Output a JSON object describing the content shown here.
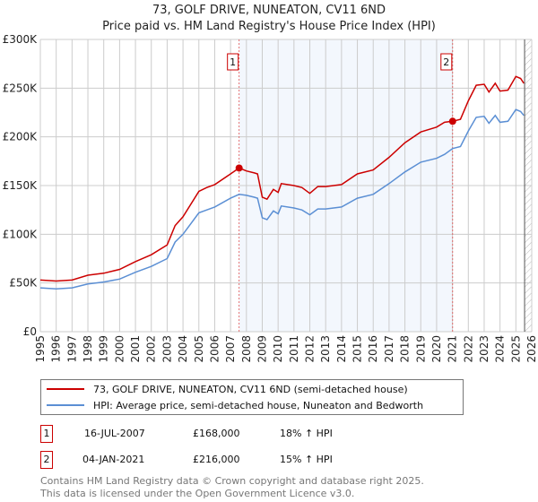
{
  "chart_data": {
    "type": "line",
    "title": "73, GOLF DRIVE, NUNEATON, CV11 6ND",
    "subtitle": "Price paid vs. HM Land Registry's House Price Index (HPI)",
    "xlim": [
      1995,
      2026
    ],
    "ylim": [
      0,
      300000
    ],
    "x_ticks": [
      "1995",
      "1996",
      "1997",
      "1998",
      "1999",
      "2000",
      "2001",
      "2002",
      "2003",
      "2004",
      "2005",
      "2006",
      "2007",
      "2008",
      "2009",
      "2010",
      "2011",
      "2012",
      "2013",
      "2014",
      "2015",
      "2016",
      "2017",
      "2018",
      "2019",
      "2020",
      "2021",
      "2022",
      "2023",
      "2024",
      "2025",
      "2026"
    ],
    "y_ticks": [
      {
        "v": 0,
        "label": "£0"
      },
      {
        "v": 50000,
        "label": "£50K"
      },
      {
        "v": 100000,
        "label": "£100K"
      },
      {
        "v": 150000,
        "label": "£150K"
      },
      {
        "v": 200000,
        "label": "£200K"
      },
      {
        "v": 250000,
        "label": "£250K"
      },
      {
        "v": 300000,
        "label": "£300K"
      }
    ],
    "grid": true,
    "x": [
      1995,
      1996,
      1997,
      1998,
      1999,
      2000,
      2001,
      2002,
      2003,
      2003.5,
      2004,
      2005,
      2005.5,
      2006,
      2007,
      2007.54,
      2008,
      2008.5,
      2008.7,
      2009,
      2009.3,
      2009.7,
      2010,
      2010.2,
      2011,
      2011.5,
      2012,
      2012.5,
      2013,
      2014,
      2015,
      2016,
      2017,
      2018,
      2019,
      2020,
      2020.5,
      2021.01,
      2021.5,
      2022,
      2022.5,
      2023,
      2023.3,
      2023.7,
      2024,
      2024.5,
      2025,
      2025.3,
      2025.5
    ],
    "series": [
      {
        "name": "73, GOLF DRIVE, NUNEATON, CV11 6ND (semi-detached house)",
        "color": "#cc0000",
        "values": [
          53000,
          52000,
          53000,
          58000,
          60000,
          64000,
          72000,
          79000,
          89000,
          109000,
          118000,
          144000,
          148000,
          151000,
          162000,
          168000,
          165000,
          163000,
          162000,
          138000,
          136000,
          146000,
          143000,
          152000,
          150000,
          148000,
          142000,
          149000,
          149000,
          151000,
          162000,
          166000,
          179000,
          194000,
          205000,
          210000,
          215000,
          216000,
          218000,
          237000,
          253000,
          254000,
          246000,
          255000,
          247000,
          248000,
          262000,
          260000,
          255000
        ]
      },
      {
        "name": "HPI: Average price, semi-detached house, Nuneaton and Bedworth",
        "color": "#5b8fd4",
        "values": [
          45000,
          44000,
          45000,
          49000,
          51000,
          54000,
          61000,
          67000,
          75000,
          92000,
          100000,
          122000,
          125000,
          128000,
          137000,
          141000,
          140000,
          138000,
          137000,
          117000,
          115000,
          124000,
          121000,
          129000,
          127000,
          125000,
          120000,
          126000,
          126000,
          128000,
          137000,
          141000,
          152000,
          164000,
          174000,
          178000,
          182000,
          188000,
          190000,
          206000,
          220000,
          221000,
          214000,
          222000,
          215000,
          216000,
          228000,
          226000,
          222000
        ]
      }
    ],
    "sales": [
      {
        "label": "1",
        "x": 2007.54,
        "value": 168000,
        "date": "16-JUL-2007",
        "price": "£168,000",
        "hpi": "18% ↑ HPI"
      },
      {
        "label": "2",
        "x": 2021.01,
        "value": 216000,
        "date": "04-JAN-2021",
        "price": "£216,000",
        "hpi": "15% ↑ HPI"
      }
    ],
    "forecast_start": 2025.55,
    "legend_position": "below"
  },
  "footer": {
    "line1": "Contains HM Land Registry data © Crown copyright and database right 2025.",
    "line2": "This data is licensed under the Open Government Licence v3.0."
  }
}
